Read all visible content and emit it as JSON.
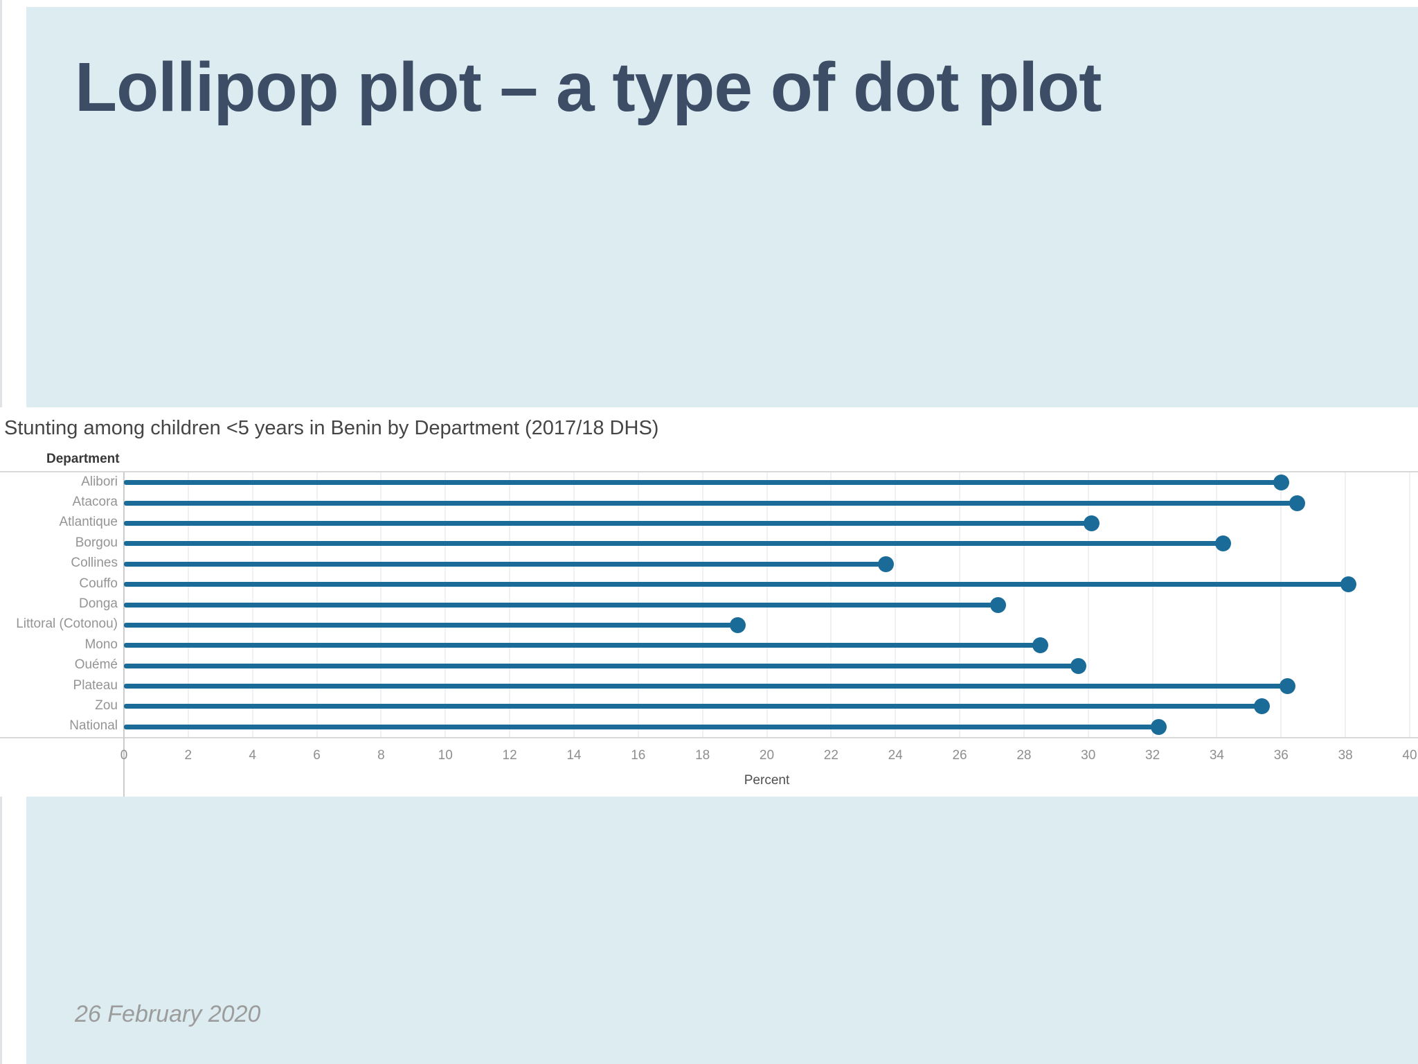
{
  "slide": {
    "title": "Lollipop plot – a type of dot plot",
    "date": "26 February 2020"
  },
  "chart_data": {
    "type": "bar",
    "variant": "lollipop-dot-plot",
    "orientation": "horizontal",
    "title": "Stunting among children <5 years in Benin by Department (2017/18 DHS)",
    "ylabel": "Department",
    "xlabel": "Percent",
    "categories": [
      "Alibori",
      "Atacora",
      "Atlantique",
      "Borgou",
      "Collines",
      "Couffo",
      "Donga",
      "Littoral (Cotonou)",
      "Mono",
      "Ouémé",
      "Plateau",
      "Zou",
      "National"
    ],
    "values": [
      36.0,
      36.5,
      30.1,
      34.2,
      23.7,
      38.1,
      27.2,
      19.1,
      28.5,
      29.7,
      36.2,
      35.4,
      32.2
    ],
    "xlim": [
      0,
      40
    ],
    "xticks": [
      0,
      2,
      4,
      6,
      8,
      10,
      12,
      14,
      16,
      18,
      20,
      22,
      24,
      26,
      28,
      30,
      32,
      34,
      36,
      38,
      40
    ],
    "grid": true,
    "legend": "none",
    "colors": {
      "lollipop": "#1a6b97",
      "banner": "#dcecf1",
      "title_text": "#3e4d66"
    }
  }
}
